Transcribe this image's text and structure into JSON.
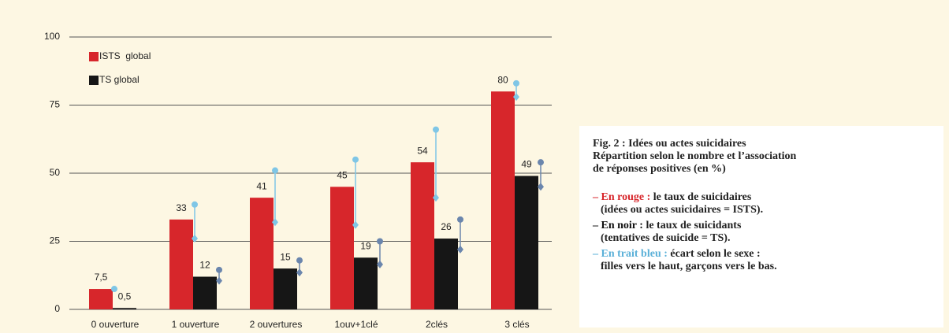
{
  "chart_data": {
    "type": "bar",
    "categories": [
      "0 ouverture",
      "1 ouverture",
      "2 ouvertures",
      "1ouv+1clé",
      "2clés",
      "3 clés"
    ],
    "series": [
      {
        "name": "ISTS  global",
        "color": "#d7262b",
        "range_color": "#7fc6e6",
        "values": [
          7.5,
          33,
          41,
          45,
          54,
          80
        ],
        "value_labels": [
          "7,5",
          "33",
          "41",
          "45",
          "54",
          "80"
        ],
        "ranges": [
          [
            7.5,
            7.5
          ],
          [
            38.5,
            26
          ],
          [
            51,
            32
          ],
          [
            55,
            31
          ],
          [
            66,
            41
          ],
          [
            83,
            78
          ]
        ]
      },
      {
        "name": "TS global",
        "color": "#161616",
        "range_color": "#6b86ad",
        "values": [
          0.5,
          12,
          15,
          19,
          26,
          49
        ],
        "value_labels": [
          "0,5",
          "12",
          "15",
          "19",
          "26",
          "49"
        ],
        "ranges": [
          null,
          [
            14.5,
            10.5
          ],
          [
            18,
            13.5
          ],
          [
            25,
            16.5
          ],
          [
            33,
            22
          ],
          [
            54,
            45
          ]
        ]
      }
    ],
    "ylim": [
      0,
      100
    ],
    "yticks": [
      0,
      25,
      50,
      75,
      100
    ],
    "grid": true,
    "legend": "upper left"
  },
  "caption": {
    "title": [
      "Fig. 2 : Idées ou actes suicidaires",
      "Répartition selon le nombre et l’association",
      "de réponses positives (en %)"
    ],
    "items": [
      {
        "label": "– En rouge :",
        "lines": [
          " le taux de suicidaires",
          "(idées ou actes suicidaires = ISTS)."
        ]
      },
      {
        "label": "– En noir :",
        "lines": [
          " le taux de suicidants",
          "(tentatives de suicide = TS)."
        ]
      },
      {
        "label": "– En trait bleu :",
        "lines": [
          " écart selon le sexe :",
          "filles vers le haut, garçons vers le bas."
        ]
      }
    ]
  }
}
